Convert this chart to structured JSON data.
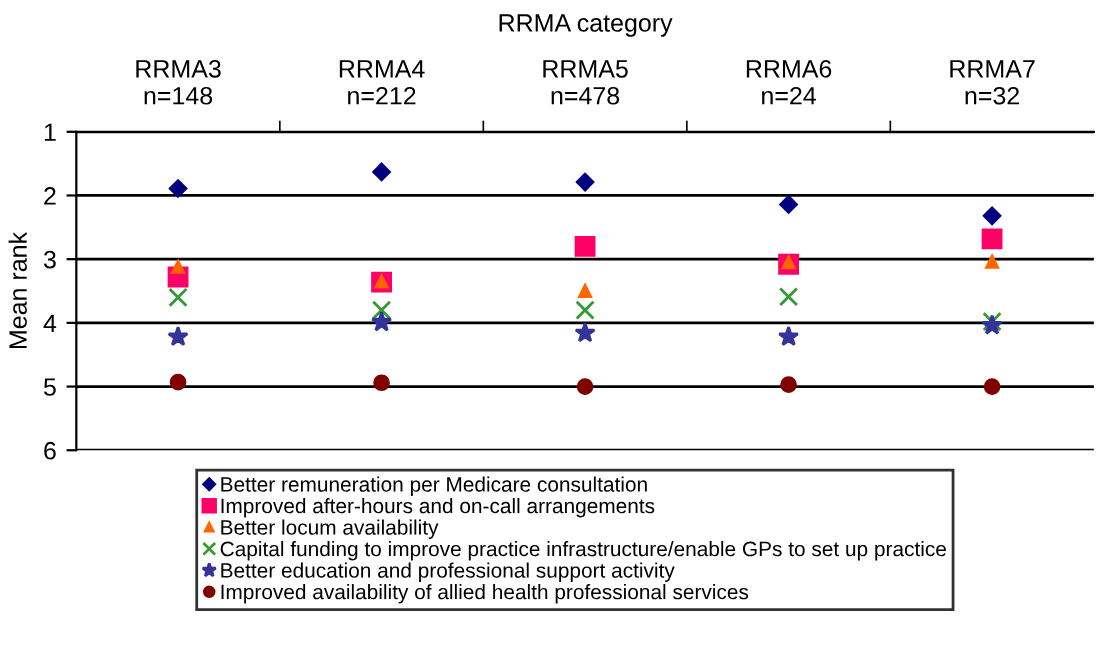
{
  "chart_data": {
    "type": "scatter",
    "xlabel": "RRMA category",
    "ylabel": "Mean rank",
    "categories": [
      "RRMA3\nn=148",
      "RRMA4\nn=212",
      "RRMA5\nn=478",
      "RRMA6\nn=24",
      "RRMA7\nn=32"
    ],
    "ylim": [
      6,
      1
    ],
    "yticks": [
      1,
      2,
      3,
      4,
      5,
      6
    ],
    "grid": "y",
    "legend": "bottom",
    "series": [
      {
        "name": "Better remuneration per Medicare consultation",
        "color": "#000080",
        "marker": "diamond",
        "values": [
          1.89,
          1.63,
          1.79,
          2.14,
          2.32
        ]
      },
      {
        "name": "Improved after-hours and on-call arrangements",
        "color": "#ff0066",
        "marker": "square",
        "values": [
          3.28,
          3.36,
          2.8,
          3.08,
          2.68
        ]
      },
      {
        "name": "Better locum availability",
        "color": "#ff6600",
        "marker": "triangle",
        "values": [
          3.12,
          3.35,
          3.5,
          3.05,
          3.04
        ]
      },
      {
        "name": "Capital funding to improve practice infrastructure/enable GPs to set up practice",
        "color": "#339933",
        "marker": "cross",
        "values": [
          3.6,
          3.8,
          3.8,
          3.59,
          3.98
        ]
      },
      {
        "name": "Better education and professional support activity",
        "color": "#333399",
        "marker": "star",
        "values": [
          4.22,
          3.99,
          4.16,
          4.22,
          4.04
        ]
      },
      {
        "name": "Improved availability of allied health professional services",
        "color": "#800000",
        "marker": "circle",
        "values": [
          4.93,
          4.94,
          5.0,
          4.97,
          5.0
        ]
      }
    ]
  }
}
